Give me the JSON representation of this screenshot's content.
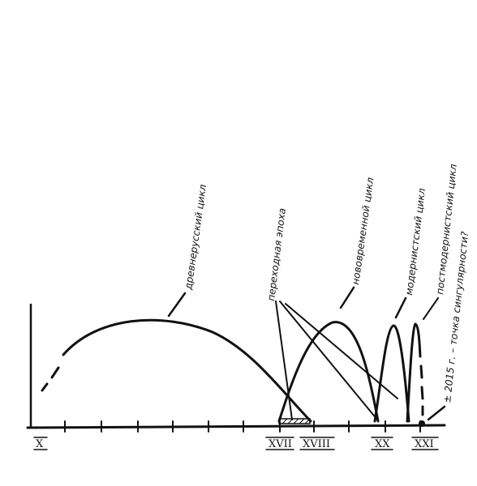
{
  "axis": {
    "ticks": [
      "X",
      "XVII",
      "XVIII",
      "XX",
      "XXI"
    ]
  },
  "labels": {
    "ancient": "древнерусский цикл",
    "transition": "переходная эпоха",
    "new_time": "нововременной цикл",
    "modern": "модернистский цикл",
    "postmodern": "постмодернистский цикл",
    "singularity": "± 2015 г. – точка сингулярности?"
  }
}
